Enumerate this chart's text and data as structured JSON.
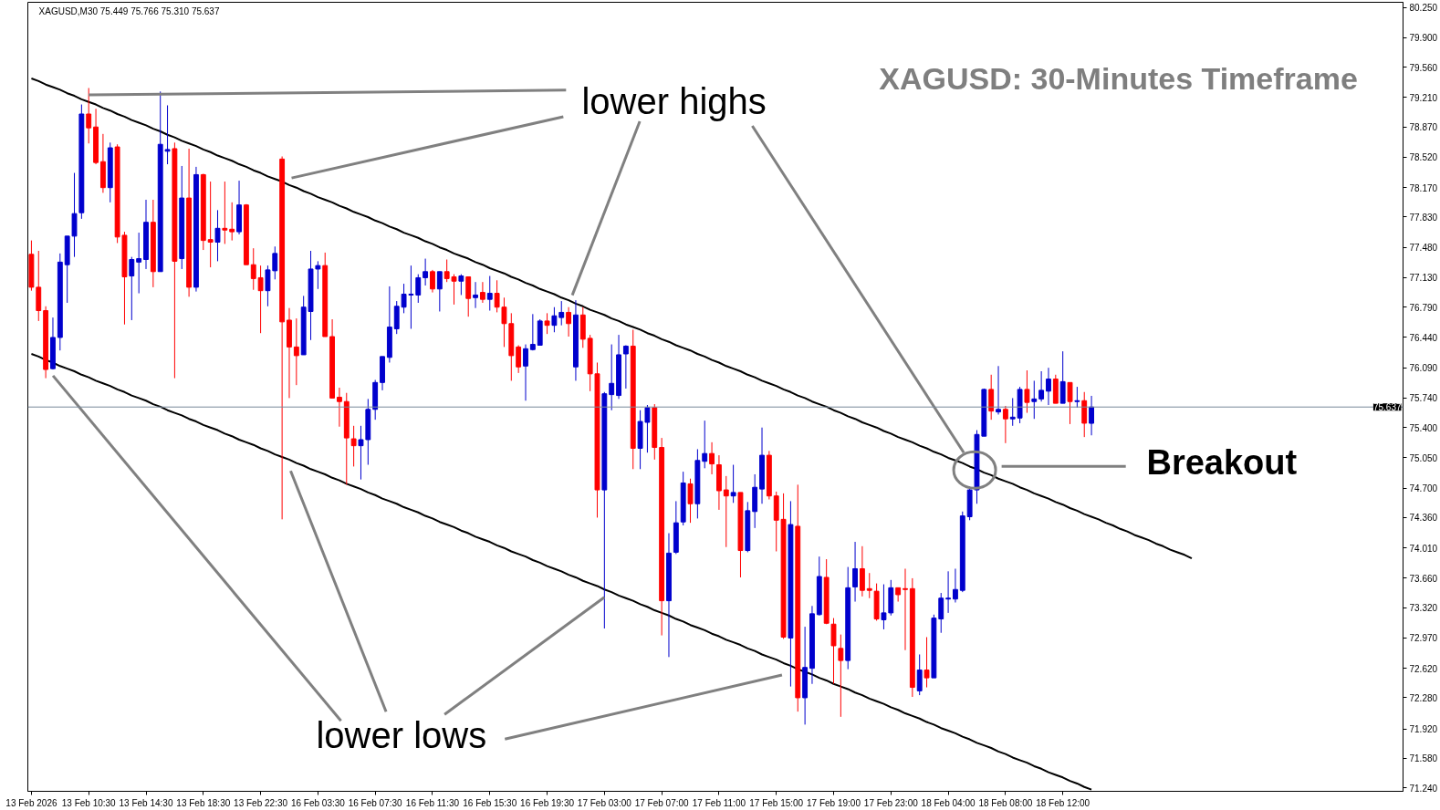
{
  "chart_data": {
    "type": "candlestick",
    "title": "XAGUSD: 30-Minutes Timeframe",
    "subtitle": "XAGUSD,M30 75.449 75.766 75.310 75.637",
    "annotations": [
      {
        "text": "lower highs",
        "x": "13 Feb 10:30",
        "y": 79.24
      },
      {
        "text": "lower lows",
        "x": "17 Feb 03:00",
        "y": 73.44
      },
      "Breakout"
    ],
    "categories": [
      "13 Feb 2026",
      null,
      null,
      null,
      null,
      null,
      null,
      null,
      "13 Feb 10:30",
      null,
      null,
      null,
      null,
      null,
      null,
      null,
      "13 Feb 14:30",
      null,
      null,
      null,
      null,
      null,
      null,
      null,
      "13 Feb 18:30",
      null,
      null,
      null,
      null,
      null,
      null,
      null,
      "13 Feb 22:30",
      null,
      null,
      null,
      null,
      null,
      null,
      null,
      "16 Feb 03:30",
      null,
      null,
      null,
      null,
      null,
      null,
      null,
      "16 Feb 07:30",
      null,
      null,
      null,
      null,
      null,
      null,
      null,
      "16 Feb 11:30",
      null,
      null,
      null,
      null,
      null,
      null,
      null,
      "16 Feb 15:30",
      null,
      null,
      null,
      null,
      null,
      null,
      null,
      "16 Feb 19:30",
      null,
      null,
      null,
      null,
      null,
      null,
      null,
      "17 Feb 03:00",
      null,
      null,
      null,
      null,
      null,
      null,
      null,
      "17 Feb 07:00",
      null,
      null,
      null,
      null,
      null,
      null,
      null,
      "17 Feb 11:00",
      null,
      null,
      null,
      null,
      null,
      null,
      null,
      "17 Feb 15:00",
      null,
      null,
      null,
      null,
      null,
      null,
      null,
      "17 Feb 19:00",
      null,
      null,
      null,
      null,
      null,
      null,
      null,
      "17 Feb 23:00",
      null,
      null,
      null,
      null,
      null,
      null,
      null,
      "18 Feb 04:00",
      null,
      null,
      null,
      null,
      null,
      null,
      null,
      "18 Feb 08:00",
      null,
      null,
      null,
      null,
      null,
      null,
      null,
      "18 Feb 12:00",
      null,
      null,
      null,
      null,
      null,
      null,
      null,
      null,
      null,
      null,
      null,
      null,
      null,
      null,
      null,
      null,
      null,
      null,
      null,
      null,
      null,
      null,
      null,
      null,
      null,
      null,
      null,
      null,
      null,
      null,
      null,
      null,
      null,
      null,
      null,
      null,
      null,
      null,
      null,
      null,
      null,
      null,
      null,
      null,
      null,
      null,
      null
    ],
    "ohlc": [
      [
        77.4,
        77.56,
        76.98,
        77.02
      ],
      [
        77.02,
        77.44,
        76.63,
        76.75
      ],
      [
        76.75,
        76.8,
        75.97,
        76.07
      ],
      [
        76.08,
        76.67,
        76.07,
        76.44
      ],
      [
        76.44,
        77.41,
        76.29,
        77.31
      ],
      [
        77.28,
        77.61,
        76.84,
        77.61
      ],
      [
        77.61,
        78.34,
        77.37,
        77.87
      ],
      [
        77.88,
        79.13,
        77.81,
        79.02
      ],
      [
        79.02,
        79.32,
        78.68,
        78.86
      ],
      [
        78.87,
        79.08,
        78.44,
        78.46
      ],
      [
        78.47,
        78.79,
        78.11,
        78.17
      ],
      [
        78.17,
        78.69,
        78.0,
        78.63
      ],
      [
        78.64,
        78.67,
        77.53,
        77.6
      ],
      [
        77.62,
        77.66,
        76.59,
        77.14
      ],
      [
        77.15,
        77.37,
        76.64,
        77.34
      ],
      [
        77.31,
        77.65,
        76.95,
        77.35
      ],
      [
        77.34,
        78.03,
        77.23,
        77.77
      ],
      [
        77.77,
        78.03,
        77.02,
        77.2
      ],
      [
        77.2,
        79.28,
        77.2,
        78.67
      ],
      [
        78.59,
        79.12,
        78.44,
        78.61
      ],
      [
        78.62,
        78.69,
        75.97,
        77.32
      ],
      [
        77.35,
        78.42,
        77.23,
        78.05
      ],
      [
        78.05,
        78.62,
        76.91,
        77.02
      ],
      [
        77.02,
        78.41,
        76.97,
        78.32
      ],
      [
        78.32,
        78.33,
        77.45,
        77.56
      ],
      [
        77.57,
        78.24,
        77.25,
        77.54
      ],
      [
        77.54,
        77.91,
        77.32,
        77.7
      ],
      [
        77.7,
        78.24,
        77.52,
        77.68
      ],
      [
        77.69,
        78.0,
        77.56,
        77.66
      ],
      [
        77.66,
        78.25,
        77.63,
        77.97
      ],
      [
        77.97,
        77.98,
        77.28,
        77.28
      ],
      [
        77.28,
        77.47,
        76.99,
        77.12
      ],
      [
        77.13,
        77.27,
        76.49,
        76.98
      ],
      [
        76.98,
        77.27,
        76.8,
        77.22
      ],
      [
        77.21,
        77.49,
        77.11,
        77.41
      ],
      [
        78.5,
        78.53,
        74.34,
        76.62
      ],
      [
        76.64,
        76.78,
        75.74,
        76.33
      ],
      [
        76.33,
        76.66,
        75.89,
        76.23
      ],
      [
        76.24,
        76.92,
        76.24,
        76.79
      ],
      [
        76.74,
        77.44,
        76.41,
        77.23
      ],
      [
        77.23,
        77.32,
        77.0,
        77.27
      ],
      [
        77.27,
        77.42,
        76.45,
        76.45
      ],
      [
        76.45,
        76.65,
        75.74,
        75.74
      ],
      [
        75.75,
        75.86,
        75.41,
        75.7
      ],
      [
        75.7,
        75.8,
        74.74,
        75.28
      ],
      [
        75.27,
        75.42,
        74.95,
        75.19
      ],
      [
        75.19,
        75.42,
        74.8,
        75.26
      ],
      [
        75.26,
        75.73,
        74.97,
        75.61
      ],
      [
        75.61,
        75.95,
        75.49,
        75.92
      ],
      [
        75.92,
        76.22,
        75.83,
        76.22
      ],
      [
        76.21,
        77.03,
        76.15,
        76.56
      ],
      [
        76.54,
        76.86,
        76.48,
        76.8
      ],
      [
        76.79,
        77.06,
        76.72,
        76.94
      ],
      [
        76.93,
        77.27,
        76.54,
        76.94
      ],
      [
        76.93,
        77.17,
        76.84,
        77.13
      ],
      [
        77.13,
        77.35,
        77.04,
        77.2
      ],
      [
        77.2,
        77.22,
        76.96,
        77.0
      ],
      [
        77.0,
        77.2,
        76.74,
        77.2
      ],
      [
        77.2,
        77.34,
        77.08,
        77.12
      ],
      [
        77.14,
        77.17,
        76.82,
        77.09
      ],
      [
        77.09,
        77.17,
        76.93,
        77.15
      ],
      [
        77.14,
        77.14,
        76.68,
        76.89
      ],
      [
        76.9,
        77.08,
        76.78,
        76.93
      ],
      [
        76.96,
        77.08,
        76.84,
        76.88
      ],
      [
        76.88,
        77.15,
        76.75,
        76.95
      ],
      [
        76.95,
        77.1,
        76.73,
        76.79
      ],
      [
        76.79,
        76.9,
        76.33,
        76.6
      ],
      [
        76.6,
        76.72,
        75.94,
        76.23
      ],
      [
        76.33,
        76.35,
        76.03,
        76.1
      ],
      [
        76.11,
        76.36,
        75.71,
        76.31
      ],
      [
        76.3,
        76.71,
        76.29,
        76.36
      ],
      [
        76.35,
        76.65,
        76.35,
        76.63
      ],
      [
        76.63,
        76.72,
        76.48,
        76.58
      ],
      [
        76.58,
        76.79,
        76.5,
        76.69
      ],
      [
        76.67,
        76.86,
        76.58,
        76.73
      ],
      [
        76.73,
        76.79,
        76.45,
        76.6
      ],
      [
        76.1,
        76.87,
        75.94,
        76.7
      ],
      [
        76.7,
        76.79,
        76.32,
        76.42
      ],
      [
        76.43,
        76.47,
        75.82,
        76.02
      ],
      [
        76.02,
        76.15,
        74.36,
        74.68
      ],
      [
        74.68,
        75.81,
        73.08,
        75.79
      ],
      [
        75.78,
        76.36,
        75.6,
        75.91
      ],
      [
        75.77,
        76.47,
        75.73,
        76.24
      ],
      [
        76.25,
        76.35,
        75.85,
        76.34
      ],
      [
        76.34,
        76.53,
        74.92,
        75.16
      ],
      [
        75.16,
        75.6,
        74.92,
        75.47
      ],
      [
        75.46,
        75.66,
        75.11,
        75.63
      ],
      [
        75.63,
        75.67,
        75.03,
        75.17
      ],
      [
        75.17,
        75.28,
        73.0,
        73.4
      ],
      [
        73.4,
        74.18,
        72.75,
        73.95
      ],
      [
        73.96,
        74.55,
        73.94,
        74.3
      ],
      [
        74.31,
        74.89,
        74.27,
        74.76
      ],
      [
        74.75,
        74.81,
        74.3,
        74.52
      ],
      [
        74.52,
        75.15,
        74.35,
        75.02
      ],
      [
        75.01,
        75.48,
        74.93,
        75.1
      ],
      [
        75.1,
        75.23,
        74.86,
        74.98
      ],
      [
        74.97,
        75.08,
        74.45,
        74.67
      ],
      [
        74.68,
        74.84,
        74.02,
        74.61
      ],
      [
        74.61,
        74.97,
        74.53,
        74.65
      ],
      [
        74.65,
        74.65,
        73.67,
        73.98
      ],
      [
        73.98,
        74.54,
        73.96,
        74.44
      ],
      [
        74.43,
        74.86,
        74.24,
        74.71
      ],
      [
        74.69,
        75.4,
        74.52,
        75.08
      ],
      [
        75.08,
        75.13,
        74.57,
        74.61
      ],
      [
        74.61,
        74.66,
        73.97,
        74.33
      ],
      [
        74.34,
        74.64,
        72.96,
        72.98
      ],
      [
        72.97,
        74.55,
        72.41,
        74.28
      ],
      [
        74.26,
        74.74,
        72.12,
        72.28
      ],
      [
        72.28,
        73.1,
        71.97,
        72.63
      ],
      [
        72.62,
        73.34,
        72.44,
        73.25
      ],
      [
        73.24,
        73.91,
        73.23,
        73.68
      ],
      [
        73.67,
        73.88,
        73.13,
        73.14
      ],
      [
        73.13,
        73.2,
        72.44,
        72.88
      ],
      [
        72.85,
        73.01,
        72.06,
        72.71
      ],
      [
        72.71,
        73.79,
        72.61,
        73.55
      ],
      [
        73.56,
        74.08,
        73.39,
        73.77
      ],
      [
        73.77,
        74.03,
        73.45,
        73.52
      ],
      [
        73.54,
        73.72,
        73.43,
        73.52
      ],
      [
        73.51,
        73.6,
        73.17,
        73.19
      ],
      [
        73.18,
        73.59,
        73.07,
        73.26
      ],
      [
        73.26,
        73.64,
        73.23,
        73.55
      ],
      [
        73.55,
        73.55,
        73.39,
        73.47
      ],
      [
        73.54,
        73.77,
        72.83,
        73.53
      ],
      [
        73.54,
        73.66,
        72.29,
        72.4
      ],
      [
        72.36,
        72.78,
        72.31,
        72.6
      ],
      [
        72.6,
        72.98,
        72.4,
        72.51
      ],
      [
        72.51,
        73.24,
        72.51,
        73.2
      ],
      [
        73.19,
        73.49,
        73.03,
        73.43
      ],
      [
        73.42,
        73.74,
        73.26,
        73.43
      ],
      [
        73.42,
        73.77,
        73.38,
        73.53
      ],
      [
        73.52,
        74.43,
        73.5,
        74.38
      ],
      [
        74.37,
        74.72,
        74.33,
        74.68
      ],
      [
        74.68,
        75.37,
        74.52,
        75.32
      ],
      [
        75.3,
        75.85,
        75.3,
        75.84
      ],
      [
        75.84,
        76.01,
        75.49,
        75.59
      ],
      [
        75.58,
        76.11,
        75.55,
        75.61
      ],
      [
        75.61,
        75.65,
        75.22,
        75.5
      ],
      [
        75.5,
        75.74,
        75.42,
        75.52
      ],
      [
        75.51,
        75.87,
        75.45,
        75.84
      ],
      [
        75.84,
        76.06,
        75.57,
        75.69
      ],
      [
        75.7,
        75.94,
        75.5,
        75.73
      ],
      [
        75.73,
        76.05,
        75.7,
        75.83
      ],
      [
        75.82,
        76.09,
        75.66,
        75.96
      ],
      [
        75.96,
        76.01,
        75.68,
        75.68
      ],
      [
        75.68,
        76.28,
        75.68,
        75.93
      ],
      [
        75.92,
        75.92,
        75.44,
        75.7
      ],
      [
        75.7,
        75.87,
        75.63,
        75.71
      ],
      [
        75.71,
        75.81,
        75.29,
        75.45
      ],
      [
        75.449,
        75.766,
        75.31,
        75.637
      ],
      null,
      null,
      null,
      null,
      null,
      null,
      null,
      null,
      null,
      null,
      null,
      null,
      null,
      null,
      null,
      null,
      null,
      null,
      null,
      null,
      null,
      null,
      null,
      null,
      null,
      null,
      null,
      null,
      null,
      null,
      null,
      null,
      null,
      null,
      null,
      null,
      null,
      null,
      null,
      null,
      null,
      null,
      null
    ],
    "colors": [
      "#ff0000",
      "#ff0000",
      "#ff0000",
      "#0000cd",
      "#0000cd",
      "#0000cd",
      "#0000cd",
      "#0000cd",
      "#ff0000",
      "#ff0000",
      "#ff0000",
      "#0000cd",
      "#ff0000",
      "#ff0000",
      "#0000cd",
      "#0000cd",
      "#0000cd",
      "#ff0000",
      "#0000cd",
      "#0000cd",
      "#ff0000",
      "#0000cd",
      "#ff0000",
      "#0000cd",
      "#ff0000",
      "#ff0000",
      "#0000cd",
      "#ff0000",
      "#ff0000",
      "#0000cd",
      "#ff0000",
      "#ff0000",
      "#ff0000",
      "#0000cd",
      "#0000cd",
      "#ff0000",
      "#ff0000",
      "#ff0000",
      "#0000cd",
      "#0000cd",
      "#0000cd",
      "#ff0000",
      "#ff0000",
      "#ff0000",
      "#ff0000",
      "#ff0000",
      "#0000cd",
      "#0000cd",
      "#0000cd",
      "#0000cd",
      "#0000cd",
      "#0000cd",
      "#0000cd",
      "#0000cd",
      "#0000cd",
      "#0000cd",
      "#ff0000",
      "#0000cd",
      "#ff0000",
      "#ff0000",
      "#0000cd",
      "#ff0000",
      "#0000cd",
      "#ff0000",
      "#0000cd",
      "#ff0000",
      "#ff0000",
      "#ff0000",
      "#ff0000",
      "#0000cd",
      "#0000cd",
      "#0000cd",
      "#ff0000",
      "#0000cd",
      "#0000cd",
      "#ff0000",
      "#0000cd",
      "#ff0000",
      "#ff0000",
      "#ff0000",
      "#0000cd",
      "#0000cd",
      "#0000cd",
      "#0000cd",
      "#ff0000",
      "#0000cd",
      "#0000cd",
      "#ff0000",
      "#ff0000",
      "#0000cd",
      "#0000cd",
      "#0000cd",
      "#ff0000",
      "#0000cd",
      "#0000cd",
      "#ff0000",
      "#ff0000",
      "#ff0000",
      "#0000cd",
      "#ff0000",
      "#0000cd",
      "#0000cd",
      "#0000cd",
      "#ff0000",
      "#ff0000",
      "#ff0000",
      "#0000cd",
      "#ff0000",
      "#0000cd",
      "#0000cd",
      "#0000cd",
      "#ff0000",
      "#ff0000",
      "#ff0000",
      "#0000cd",
      "#0000cd",
      "#ff0000",
      "#ff0000",
      "#ff0000",
      "#0000cd",
      "#0000cd",
      "#ff0000",
      "#ff0000",
      "#ff0000",
      "#0000cd",
      "#ff0000",
      "#0000cd",
      "#0000cd",
      "#0000cd",
      "#0000cd",
      "#0000cd",
      "#0000cd",
      "#0000cd",
      "#0000cd",
      "#ff0000",
      "#0000cd",
      "#ff0000",
      "#0000cd",
      "#0000cd",
      "#ff0000",
      "#0000cd",
      "#0000cd",
      "#0000cd",
      "#ff0000",
      "#0000cd",
      "#ff0000",
      "#0000cd",
      "#ff0000",
      "#0000cd",
      null,
      null,
      null,
      null,
      null,
      null,
      null,
      null,
      null,
      null,
      null,
      null,
      null,
      null,
      null,
      null,
      null,
      null,
      null,
      null,
      null,
      null,
      null,
      null,
      null,
      null,
      null,
      null,
      null,
      null,
      null,
      null,
      null,
      null,
      null,
      null,
      null,
      null,
      null,
      null,
      null,
      null,
      null
    ],
    "series": [
      {
        "type": "line",
        "color": "#000000",
        "values": [
          79.43,
          79.4,
          79.36,
          79.33,
          79.3,
          79.26,
          79.23,
          79.19,
          79.16,
          79.13,
          79.09,
          79.06,
          79.02,
          78.99,
          78.95,
          78.92,
          78.89,
          78.85,
          78.82,
          78.78,
          78.75,
          78.71,
          78.68,
          78.65,
          78.61,
          78.58,
          78.54,
          78.51,
          78.48,
          78.44,
          78.41,
          78.37,
          78.34,
          78.3,
          78.27,
          78.24,
          78.2,
          78.17,
          78.13,
          78.1,
          78.06,
          78.03,
          78.0,
          77.96,
          77.93,
          77.89,
          77.86,
          77.83,
          77.79,
          77.76,
          77.72,
          77.69,
          77.65,
          77.62,
          77.59,
          77.55,
          77.52,
          77.48,
          77.45,
          77.41,
          77.38,
          77.35,
          77.31,
          77.28,
          77.24,
          77.21,
          77.18,
          77.14,
          77.11,
          77.07,
          77.04,
          77.0,
          76.97,
          76.94,
          76.9,
          76.87,
          76.83,
          76.8,
          76.76,
          76.73,
          76.7,
          76.66,
          76.63,
          76.59,
          76.56,
          76.53,
          76.49,
          76.46,
          76.42,
          76.39,
          76.35,
          76.32,
          76.29,
          76.25,
          76.22,
          76.18,
          76.15,
          76.11,
          76.08,
          76.05,
          76.01,
          75.98,
          75.94,
          75.91,
          75.88,
          75.84,
          75.81,
          75.77,
          75.74,
          75.7,
          75.67,
          75.64,
          75.6,
          75.57,
          75.53,
          75.5,
          75.46,
          75.43,
          75.4,
          75.36,
          75.33,
          75.29,
          75.26,
          75.23,
          75.19,
          75.16,
          75.12,
          75.09,
          75.05,
          75.02,
          74.99,
          74.95,
          74.92,
          74.88,
          74.85,
          74.81,
          74.78,
          74.75,
          74.71,
          74.68,
          74.64,
          74.61,
          74.58,
          74.54,
          74.51,
          74.47,
          74.44,
          74.4,
          74.37,
          74.34,
          74.3,
          74.27,
          74.23,
          74.2,
          74.16,
          74.13,
          74.1,
          74.06,
          74.03,
          73.99,
          73.96,
          73.93,
          73.89,
          null,
          null,
          null,
          null,
          null,
          null,
          null,
          null,
          null,
          null,
          null,
          null,
          null,
          null,
          null,
          null,
          null,
          null,
          null,
          null,
          null,
          null,
          null,
          null,
          null,
          null,
          null,
          null,
          null
        ]
      },
      {
        "type": "line",
        "color": "#000000",
        "values": [
          76.25,
          76.22,
          76.18,
          76.15,
          76.11,
          76.08,
          76.05,
          76.01,
          75.98,
          75.94,
          75.91,
          75.88,
          75.84,
          75.81,
          75.77,
          75.74,
          75.71,
          75.67,
          75.64,
          75.6,
          75.57,
          75.54,
          75.5,
          75.47,
          75.43,
          75.4,
          75.37,
          75.33,
          75.3,
          75.26,
          75.23,
          75.2,
          75.16,
          75.13,
          75.09,
          75.06,
          75.03,
          74.99,
          74.96,
          74.92,
          74.89,
          74.86,
          74.82,
          74.79,
          74.75,
          74.72,
          74.69,
          74.65,
          74.62,
          74.58,
          74.55,
          74.52,
          74.48,
          74.45,
          74.42,
          74.38,
          74.35,
          74.31,
          74.28,
          74.25,
          74.21,
          74.18,
          74.14,
          74.11,
          74.08,
          74.04,
          74.01,
          73.97,
          73.94,
          73.91,
          73.87,
          73.84,
          73.8,
          73.77,
          73.74,
          73.7,
          73.67,
          73.63,
          73.6,
          73.57,
          73.53,
          73.5,
          73.46,
          73.43,
          73.4,
          73.36,
          73.33,
          73.29,
          73.26,
          73.23,
          73.19,
          73.16,
          73.12,
          73.09,
          73.06,
          73.02,
          72.99,
          72.95,
          72.92,
          72.89,
          72.85,
          72.82,
          72.78,
          72.75,
          72.72,
          72.68,
          72.65,
          72.61,
          72.58,
          72.55,
          72.51,
          72.48,
          72.44,
          72.41,
          72.38,
          72.34,
          72.31,
          72.27,
          72.24,
          72.21,
          72.17,
          72.14,
          72.1,
          72.07,
          72.04,
          72.0,
          71.97,
          71.93,
          71.9,
          71.87,
          71.83,
          71.8,
          71.76,
          71.73,
          71.7,
          71.66,
          71.63,
          71.59,
          71.56,
          71.53,
          71.49,
          71.46,
          71.42,
          71.39,
          71.36,
          71.32,
          71.29,
          71.25,
          71.22,
          null,
          null,
          null,
          null,
          null,
          null,
          null,
          null,
          null,
          null,
          null,
          null,
          null,
          null,
          null,
          null,
          null,
          null,
          null,
          null,
          null,
          null,
          null,
          null,
          null,
          null,
          null,
          null,
          null,
          null,
          null,
          null,
          null,
          null,
          null,
          null,
          null,
          null,
          null,
          null,
          null,
          null,
          null
        ]
      }
    ],
    "ref_lines": [
      {
        "axis": "y",
        "value": 75.637,
        "label": "75.637",
        "color": "#778899"
      }
    ],
    "ylim": [
      71.2,
      80.31
    ],
    "yticks": [
      {
        "value": 80.25,
        "label": "80.250"
      },
      {
        "value": 79.9,
        "label": "79.900"
      },
      {
        "value": 79.56,
        "label": "79.560"
      },
      {
        "value": 79.21,
        "label": "79.210"
      },
      {
        "value": 78.87,
        "label": "78.870"
      },
      {
        "value": 78.52,
        "label": "78.520"
      },
      {
        "value": 78.17,
        "label": "78.170"
      },
      {
        "value": 77.83,
        "label": "77.830"
      },
      {
        "value": 77.48,
        "label": "77.480"
      },
      {
        "value": 77.13,
        "label": "77.130"
      },
      {
        "value": 76.79,
        "label": "76.790"
      },
      {
        "value": 76.44,
        "label": "76.440"
      },
      {
        "value": 76.09,
        "label": "76.090"
      },
      {
        "value": 75.74,
        "label": "75.740"
      },
      {
        "value": 75.4,
        "label": "75.400"
      },
      {
        "value": 75.05,
        "label": "75.050"
      },
      {
        "value": 74.7,
        "label": "74.700"
      },
      {
        "value": 74.36,
        "label": "74.360"
      },
      {
        "value": 74.01,
        "label": "74.010"
      },
      {
        "value": 73.66,
        "label": "73.660"
      },
      {
        "value": 73.32,
        "label": "73.320"
      },
      {
        "value": 72.97,
        "label": "72.970"
      },
      {
        "value": 72.62,
        "label": "72.620"
      },
      {
        "value": 72.28,
        "label": "72.280"
      },
      {
        "value": 71.92,
        "label": "71.920"
      },
      {
        "value": 71.58,
        "label": "71.580"
      },
      {
        "value": 71.24,
        "label": "71.240"
      }
    ]
  }
}
